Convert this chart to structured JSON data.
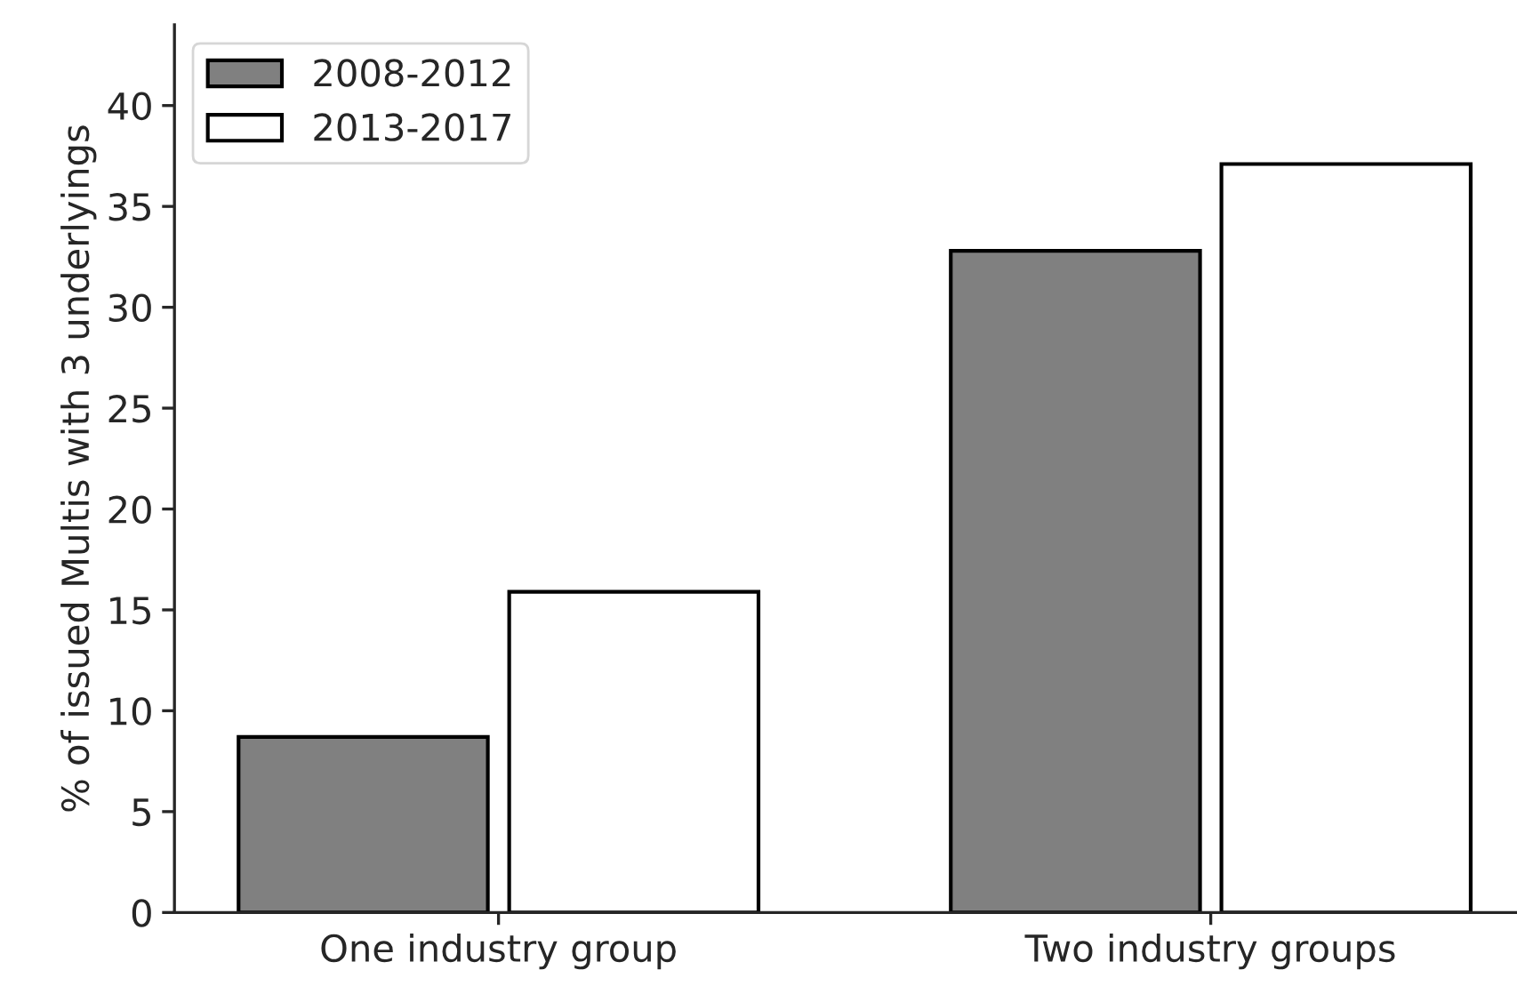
{
  "chart_data": {
    "type": "bar",
    "ylabel": "% of issued Multis with 3 underlyings",
    "categories": [
      "One industry group",
      "Two industry groups"
    ],
    "series": [
      {
        "name": "2008-2012",
        "color": "#808080",
        "values": [
          8.7,
          32.8
        ]
      },
      {
        "name": "2013-2017",
        "color": "#ffffff",
        "values": [
          15.9,
          37.1
        ]
      }
    ],
    "ylim": [
      0,
      44
    ],
    "yticks": [
      0,
      5,
      10,
      15,
      20,
      25,
      30,
      35,
      40
    ],
    "grid": false,
    "legend": "top left"
  }
}
